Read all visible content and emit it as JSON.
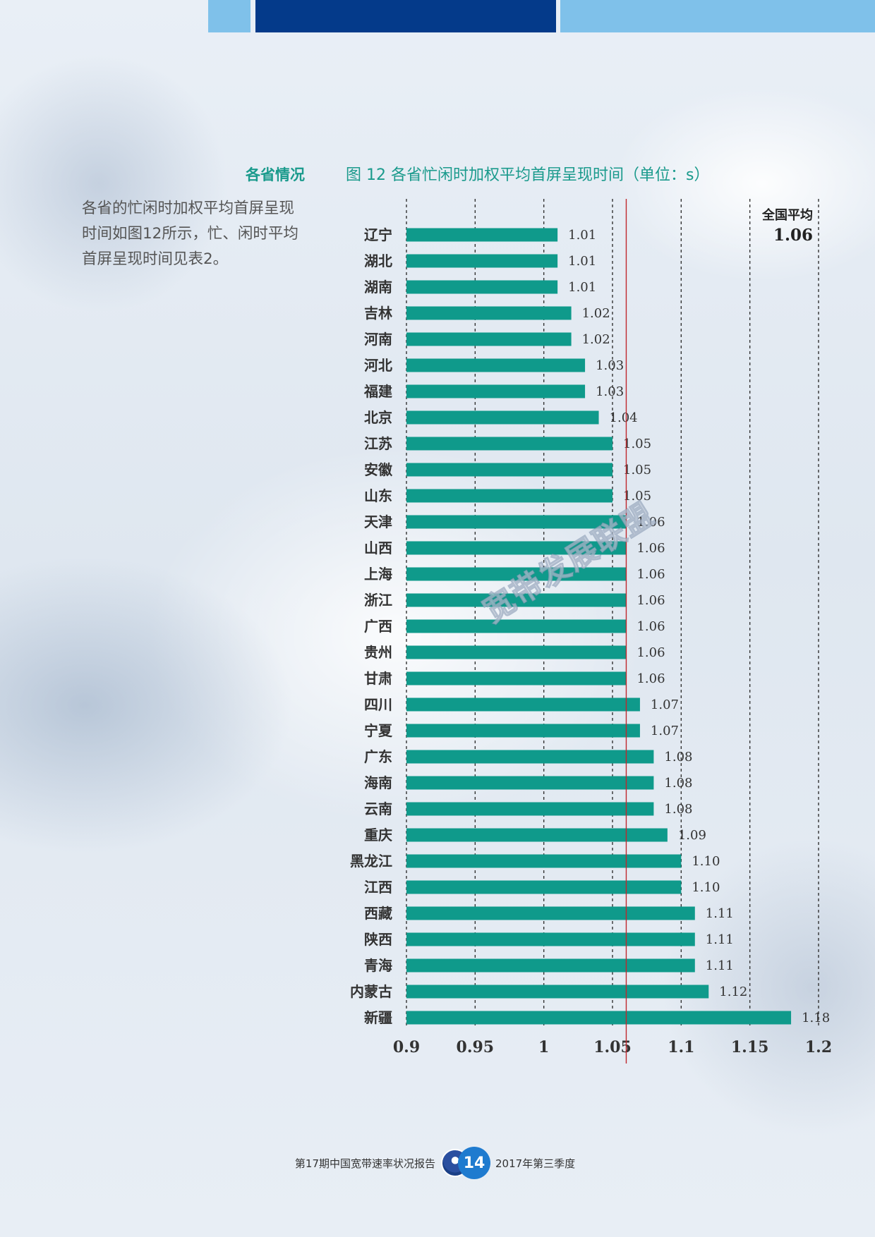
{
  "side": {
    "heading": "各省情况",
    "text": "各省的忙闲时加权平均首屏呈现时间如图12所示，忙、闲时平均首屏呈现时间见表2。"
  },
  "chart_data": {
    "type": "bar",
    "orientation": "horizontal",
    "title": "图 12 各省忙闲时加权平均首屏呈现时间（单位：s）",
    "categories": [
      "辽宁",
      "湖北",
      "湖南",
      "吉林",
      "河南",
      "河北",
      "福建",
      "北京",
      "江苏",
      "安徽",
      "山东",
      "天津",
      "山西",
      "上海",
      "浙江",
      "广西",
      "贵州",
      "甘肃",
      "四川",
      "宁夏",
      "广东",
      "海南",
      "云南",
      "重庆",
      "黑龙江",
      "江西",
      "西藏",
      "陕西",
      "青海",
      "内蒙古",
      "新疆"
    ],
    "values": [
      1.01,
      1.01,
      1.01,
      1.02,
      1.02,
      1.03,
      1.03,
      1.04,
      1.05,
      1.05,
      1.05,
      1.06,
      1.06,
      1.06,
      1.06,
      1.06,
      1.06,
      1.06,
      1.07,
      1.07,
      1.08,
      1.08,
      1.08,
      1.09,
      1.1,
      1.1,
      1.11,
      1.11,
      1.11,
      1.12,
      1.18
    ],
    "value_labels": [
      "1.01",
      "1.01",
      "1.01",
      "1.02",
      "1.02",
      "1.03",
      "1.03",
      "1.04",
      "1.05",
      "1.05",
      "1.05",
      "1.06",
      "1.06",
      "1.06",
      "1.06",
      "1.06",
      "1.06",
      "1.06",
      "1.07",
      "1.07",
      "1.08",
      "1.08",
      "1.08",
      "1.09",
      "1.10",
      "1.10",
      "1.11",
      "1.11",
      "1.11",
      "1.12",
      "1.18"
    ],
    "xlim": [
      0.9,
      1.2
    ],
    "xticks": [
      0.9,
      0.95,
      1,
      1.05,
      1.1,
      1.15,
      1.2
    ],
    "xtick_labels": [
      "0.9",
      "0.95",
      "1",
      "1.05",
      "1.1",
      "1.15",
      "1.2"
    ],
    "reference_line": {
      "value": 1.06,
      "title": "全国平均",
      "label": "1.06"
    },
    "grid": "vertical dashed",
    "bar_color": "#0f9a8b",
    "reference_color": "#c0282d"
  },
  "watermark": "宽带发展联盟",
  "footer": {
    "left": "第17期中国宽带速率状况报告",
    "page": "14",
    "right": "2017年第三季度"
  }
}
